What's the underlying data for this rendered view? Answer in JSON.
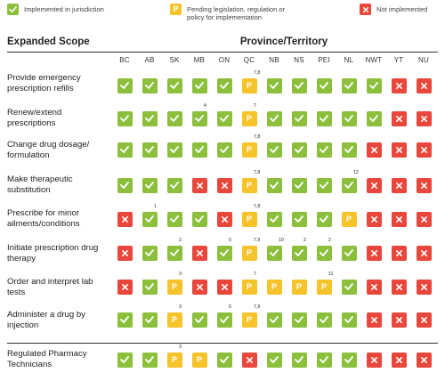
{
  "colors": {
    "implemented": "#8bbf3c",
    "pending": "#f6c32b",
    "not_implemented": "#e9473b"
  },
  "legend": [
    {
      "status": "Y",
      "icon": "check-icon",
      "text": "Implemented in jurisdiction"
    },
    {
      "status": "P",
      "icon": "p-letter-icon",
      "glyph": "P",
      "text": "Pending legislation, regulation or policy for implementation"
    },
    {
      "status": "X",
      "icon": "x-icon",
      "text": "Not implemented"
    }
  ],
  "headers": {
    "scope": "Expanded Scope",
    "province": "Province/Territory"
  },
  "columns": [
    "BC",
    "AB",
    "SK",
    "MB",
    "ON",
    "QC",
    "NB",
    "NS",
    "PEI",
    "NL",
    "NWT",
    "YT",
    "NU"
  ],
  "pending_glyph": "P",
  "rows": [
    {
      "label": "Provide emergency prescription refills",
      "cells": [
        "Y",
        "Y",
        "Y",
        "Y",
        "Y",
        "P",
        "Y",
        "Y",
        "Y",
        "Y",
        "Y",
        "X",
        "X"
      ],
      "notes": [
        null,
        null,
        null,
        null,
        null,
        "7,8",
        null,
        null,
        null,
        null,
        null,
        null,
        null
      ]
    },
    {
      "label": "Renew/extend prescriptions",
      "cells": [
        "Y",
        "Y",
        "Y",
        "Y",
        "Y",
        "P",
        "Y",
        "Y",
        "Y",
        "Y",
        "Y",
        "X",
        "X"
      ],
      "notes": [
        null,
        null,
        null,
        "4",
        null,
        "7",
        null,
        null,
        null,
        null,
        null,
        null,
        null
      ]
    },
    {
      "label": "Change drug dosage/ formulation",
      "cells": [
        "Y",
        "Y",
        "Y",
        "Y",
        "Y",
        "P",
        "Y",
        "Y",
        "Y",
        "Y",
        "X",
        "X",
        "X"
      ],
      "notes": [
        null,
        null,
        null,
        null,
        null,
        "7,8",
        null,
        null,
        null,
        null,
        null,
        null,
        null
      ]
    },
    {
      "label": "Make therapeutic substitution",
      "cells": [
        "Y",
        "Y",
        "Y",
        "X",
        "X",
        "P",
        "Y",
        "Y",
        "Y",
        "Y",
        "X",
        "X",
        "X"
      ],
      "notes": [
        null,
        null,
        null,
        null,
        null,
        "7,8",
        null,
        null,
        null,
        "12",
        null,
        null,
        null
      ]
    },
    {
      "label": "Prescribe for minor ailments/conditions",
      "cells": [
        "X",
        "Y",
        "Y",
        "Y",
        "X",
        "P",
        "Y",
        "Y",
        "Y",
        "P",
        "X",
        "X",
        "X"
      ],
      "notes": [
        null,
        "1",
        null,
        null,
        null,
        "7,8",
        null,
        null,
        null,
        null,
        null,
        null,
        null
      ]
    },
    {
      "label": "Initiate prescription drug therapy",
      "cells": [
        "X",
        "Y",
        "Y",
        "X",
        "Y",
        "P",
        "Y",
        "Y",
        "Y",
        "Y",
        "X",
        "X",
        "X"
      ],
      "notes": [
        null,
        null,
        "2",
        null,
        "5",
        "7,9",
        "10",
        "2",
        "2",
        null,
        null,
        null,
        null
      ]
    },
    {
      "label": "Order and interpret lab tests",
      "cells": [
        "X",
        "Y",
        "P",
        "X",
        "X",
        "P",
        "P",
        "P",
        "P",
        "Y",
        "X",
        "X",
        "X"
      ],
      "notes": [
        null,
        null,
        "3",
        null,
        null,
        "7",
        null,
        null,
        "11",
        null,
        null,
        null,
        null
      ]
    },
    {
      "label": "Administer a drug by injection",
      "cells": [
        "Y",
        "Y",
        "P",
        "Y",
        "Y",
        "P",
        "Y",
        "Y",
        "Y",
        "Y",
        "X",
        "X",
        "X"
      ],
      "notes": [
        null,
        null,
        "3",
        null,
        "6",
        "7,9",
        null,
        null,
        null,
        null,
        null,
        null,
        null
      ]
    },
    {
      "label": "Regulated Pharmacy Technicians",
      "cells": [
        "Y",
        "Y",
        "P",
        "P",
        "Y",
        "X",
        "Y",
        "Y",
        "Y",
        "Y",
        "X",
        "X",
        "X"
      ],
      "notes": [
        null,
        null,
        "3",
        null,
        null,
        null,
        null,
        null,
        null,
        null,
        null,
        null,
        null
      ]
    }
  ]
}
